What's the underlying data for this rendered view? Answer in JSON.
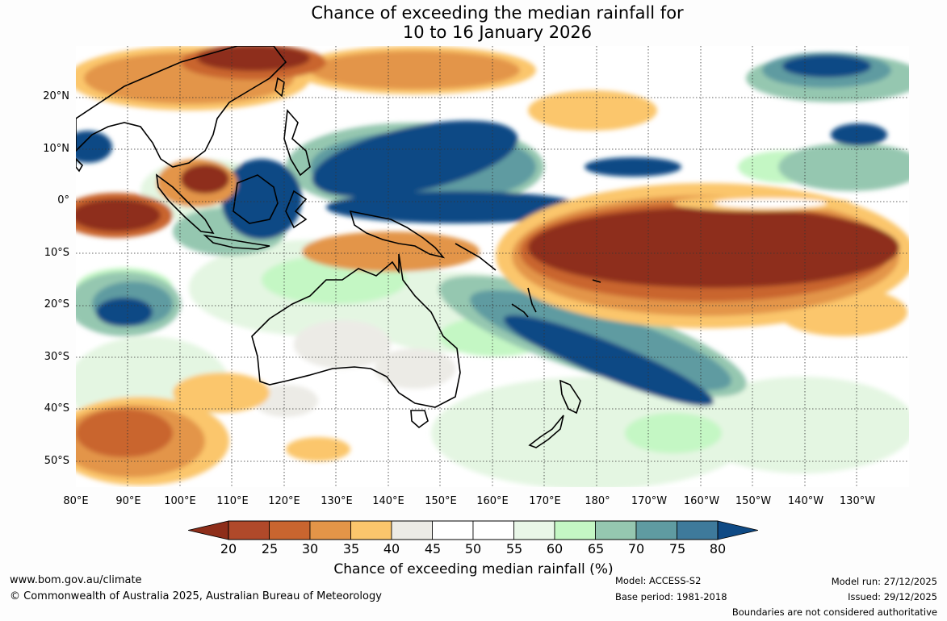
{
  "title": {
    "line1": "Chance of exceeding the median rainfall for",
    "line2": "10 to 16 January 2026"
  },
  "map": {
    "longitude_labels": [
      "80°E",
      "90°E",
      "100°E",
      "110°E",
      "120°E",
      "130°E",
      "140°E",
      "150°E",
      "160°E",
      "170°E",
      "180°",
      "170°W",
      "160°W",
      "150°W",
      "140°W",
      "130°W"
    ],
    "latitude_labels": [
      "20°N",
      "10°N",
      "0°",
      "10°S",
      "20°S",
      "30°S",
      "40°S",
      "50°S"
    ]
  },
  "colorbar": {
    "ticks": [
      "20",
      "25",
      "30",
      "35",
      "40",
      "45",
      "50",
      "55",
      "60",
      "65",
      "70",
      "75",
      "80"
    ],
    "colors": [
      "#8e2e1a",
      "#b0492a",
      "#c9652f",
      "#e39548",
      "#fbc66c",
      "#ecebe6",
      "#ffffff",
      "#ffffff",
      "#e9f7e8",
      "#c4f7c4",
      "#95c7b0",
      "#5f9ba1",
      "#3e7a9b",
      "#0f4a85"
    ],
    "label": "Chance of exceeding median rainfall (%)"
  },
  "footer": {
    "website": "www.bom.gov.au/climate",
    "copyright": "© Commonwealth of Australia 2025, Australian Bureau of Meteorology",
    "model": "Model: ACCESS-S2",
    "base_period": "Base period: 1981-2018",
    "model_run": "Model run: 27/12/2025",
    "issued": "Issued: 29/12/2025",
    "disclaimer": "Boundaries are not considered authoritative"
  }
}
